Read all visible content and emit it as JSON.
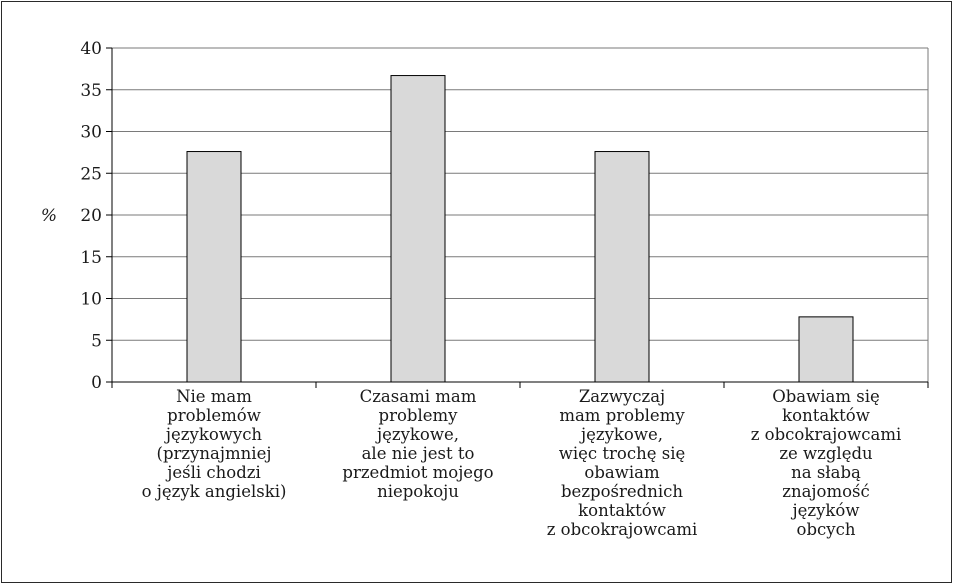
{
  "chart_data": {
    "type": "bar",
    "title": "",
    "xlabel": "",
    "ylabel": "%",
    "ylim": [
      0,
      40
    ],
    "yticks": [
      0,
      5,
      10,
      15,
      20,
      25,
      30,
      35,
      40
    ],
    "grid": true,
    "legend": "none",
    "bar_color": "#d9d9d9",
    "bar_edge_color": "#000000",
    "categories": [
      "Nie mam\nproblemów\njęzykowych\n(przynajmniej\njeśli chodzi\no język angielski)",
      "Czasami mam\nproblemy\njęzykowe,\nale nie jest to\nprzedmiot mojego\nniepokoju",
      "Zazwyczaj\nmam problemy\njęzykowe,\nwięc trochę się\nobawiam\nbezpośrednich\nkontaktów\nz obcokrajowcami",
      "Obawiam się\nkontaktów\nz obcokrajowcami\nze względu\nna słabą\nznajomość\njęzyków\nobcych"
    ],
    "values": [
      27.6,
      36.7,
      27.6,
      7.8
    ]
  }
}
